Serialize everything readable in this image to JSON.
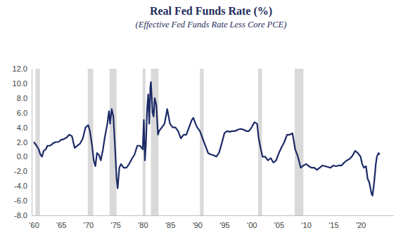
{
  "chart_data": {
    "type": "line",
    "title": "Real Fed Funds Rate (%)",
    "subtitle": "(Effective Fed Funds Rate Less Core PCE)",
    "x": [
      1960.0,
      1960.5,
      1960.9,
      1961.2,
      1961.5,
      1961.8,
      1962.2,
      1962.5,
      1963.0,
      1963.5,
      1964.0,
      1964.5,
      1965.0,
      1965.5,
      1966.0,
      1966.5,
      1967.0,
      1967.5,
      1968.0,
      1968.5,
      1969.0,
      1969.5,
      1970.0,
      1970.3,
      1970.7,
      1971.0,
      1971.3,
      1971.6,
      1972.0,
      1972.3,
      1972.7,
      1973.0,
      1973.5,
      1973.8,
      1974.0,
      1974.3,
      1974.6,
      1974.9,
      1975.2,
      1975.4,
      1975.7,
      1976.0,
      1976.5,
      1977.0,
      1977.5,
      1978.0,
      1978.5,
      1979.0,
      1979.5,
      1980.0,
      1980.2,
      1980.4,
      1980.6,
      1980.8,
      1981.0,
      1981.2,
      1981.4,
      1981.5,
      1981.8,
      1982.0,
      1982.2,
      1982.5,
      1982.8,
      1983.0,
      1983.5,
      1984.0,
      1984.5,
      1985.0,
      1985.5,
      1986.0,
      1986.5,
      1987.0,
      1987.5,
      1988.0,
      1988.5,
      1989.0,
      1989.3,
      1989.7,
      1990.0,
      1990.5,
      1991.0,
      1991.5,
      1992.0,
      1992.5,
      1993.0,
      1993.5,
      1994.0,
      1994.5,
      1995.0,
      1995.5,
      1996.0,
      1996.5,
      1997.0,
      1997.5,
      1998.0,
      1998.5,
      1999.0,
      1999.5,
      2000.0,
      2000.5,
      2001.0,
      2001.3,
      2001.7,
      2002.0,
      2002.5,
      2003.0,
      2003.5,
      2004.0,
      2004.5,
      2005.0,
      2005.5,
      2006.0,
      2006.5,
      2007.0,
      2007.5,
      2008.0,
      2008.5,
      2009.0,
      2009.5,
      2010.0,
      2010.5,
      2011.0,
      2011.5,
      2012.0,
      2012.5,
      2013.0,
      2013.5,
      2014.0,
      2014.5,
      2015.0,
      2015.5,
      2016.0,
      2016.5,
      2017.0,
      2017.5,
      2018.0,
      2018.5,
      2019.0,
      2019.5,
      2020.0,
      2020.3,
      2020.6,
      2021.0,
      2021.3,
      2021.6,
      2022.0,
      2022.2,
      2022.5,
      2022.8,
      2023.0,
      2023.3,
      2023.5
    ],
    "series": [
      {
        "color": "#1b2a66",
        "values": [
          2.0,
          1.5,
          1.0,
          0.3,
          0.0,
          0.8,
          1.0,
          1.5,
          1.5,
          1.8,
          2.0,
          2.0,
          2.3,
          2.4,
          2.6,
          3.0,
          2.8,
          1.2,
          1.5,
          1.8,
          2.5,
          4.0,
          4.3,
          3.5,
          1.5,
          -0.5,
          -1.3,
          0.5,
          0.2,
          -0.5,
          1.0,
          2.5,
          4.5,
          6.2,
          4.5,
          6.5,
          5.5,
          1.5,
          -3.0,
          -4.3,
          -1.5,
          -1.0,
          -1.5,
          -1.5,
          -1.0,
          -0.3,
          0.3,
          1.5,
          1.5,
          1.0,
          5.0,
          -0.5,
          2.0,
          6.5,
          8.5,
          4.5,
          9.5,
          10.2,
          6.0,
          5.5,
          8.0,
          7.0,
          3.0,
          3.5,
          4.0,
          4.5,
          6.5,
          4.5,
          4.0,
          4.0,
          3.5,
          2.5,
          3.0,
          3.0,
          4.0,
          5.0,
          5.3,
          4.5,
          4.0,
          3.5,
          2.5,
          1.5,
          0.5,
          0.3,
          0.2,
          0.0,
          0.5,
          1.8,
          3.2,
          3.5,
          3.4,
          3.5,
          3.5,
          3.7,
          3.8,
          3.7,
          3.5,
          3.5,
          4.0,
          4.7,
          4.5,
          2.5,
          1.0,
          0.0,
          0.0,
          -0.5,
          -0.2,
          -0.8,
          -0.5,
          0.5,
          1.3,
          2.0,
          3.0,
          3.0,
          3.2,
          1.0,
          0.0,
          -1.5,
          -1.2,
          -1.0,
          -1.3,
          -1.5,
          -1.5,
          -1.8,
          -1.5,
          -1.2,
          -1.3,
          -1.4,
          -1.5,
          -1.2,
          -1.3,
          -1.2,
          -1.2,
          -0.8,
          -0.5,
          -0.3,
          0.1,
          0.8,
          0.5,
          0.0,
          -1.0,
          -1.5,
          -1.3,
          -3.0,
          -3.5,
          -5.0,
          -5.3,
          -3.5,
          -1.0,
          0.0,
          0.5,
          0.3
        ]
      }
    ],
    "recessions": [
      [
        1960.3,
        1961.1
      ],
      [
        1969.9,
        1970.9
      ],
      [
        1973.9,
        1975.2
      ],
      [
        1980.0,
        1980.5
      ],
      [
        1981.5,
        1982.9
      ],
      [
        1990.5,
        1991.2
      ],
      [
        2001.2,
        2001.9
      ],
      [
        2007.9,
        2009.5
      ]
    ],
    "recession_color": "#d9d9d9",
    "xlim": [
      1959.6,
      2026
    ],
    "xticks": [
      {
        "value": 1960,
        "label": "'60"
      },
      {
        "value": 1965,
        "label": "'65"
      },
      {
        "value": 1970,
        "label": "'70"
      },
      {
        "value": 1975,
        "label": "'75"
      },
      {
        "value": 1980,
        "label": "'80"
      },
      {
        "value": 1985,
        "label": "'85"
      },
      {
        "value": 1990,
        "label": "'90"
      },
      {
        "value": 1995,
        "label": "'95"
      },
      {
        "value": 2000,
        "label": "'00"
      },
      {
        "value": 2005,
        "label": "'05"
      },
      {
        "value": 2010,
        "label": "'10"
      },
      {
        "value": 2015,
        "label": "'15"
      },
      {
        "value": 2020,
        "label": "'20"
      }
    ],
    "ylim": [
      -8,
      12
    ],
    "yticks": [
      {
        "value": -8,
        "label": "-8.0"
      },
      {
        "value": -6,
        "label": "-6.0"
      },
      {
        "value": -4,
        "label": "-4.0"
      },
      {
        "value": -2,
        "label": "-2.0"
      },
      {
        "value": 0,
        "label": "0.0"
      },
      {
        "value": 2,
        "label": "2.0"
      },
      {
        "value": 4,
        "label": "4.0"
      },
      {
        "value": 6,
        "label": "6.0"
      },
      {
        "value": 8,
        "label": "8.0"
      },
      {
        "value": 10,
        "label": "10.0"
      },
      {
        "value": 12,
        "label": "12.0"
      }
    ],
    "grid": false
  }
}
